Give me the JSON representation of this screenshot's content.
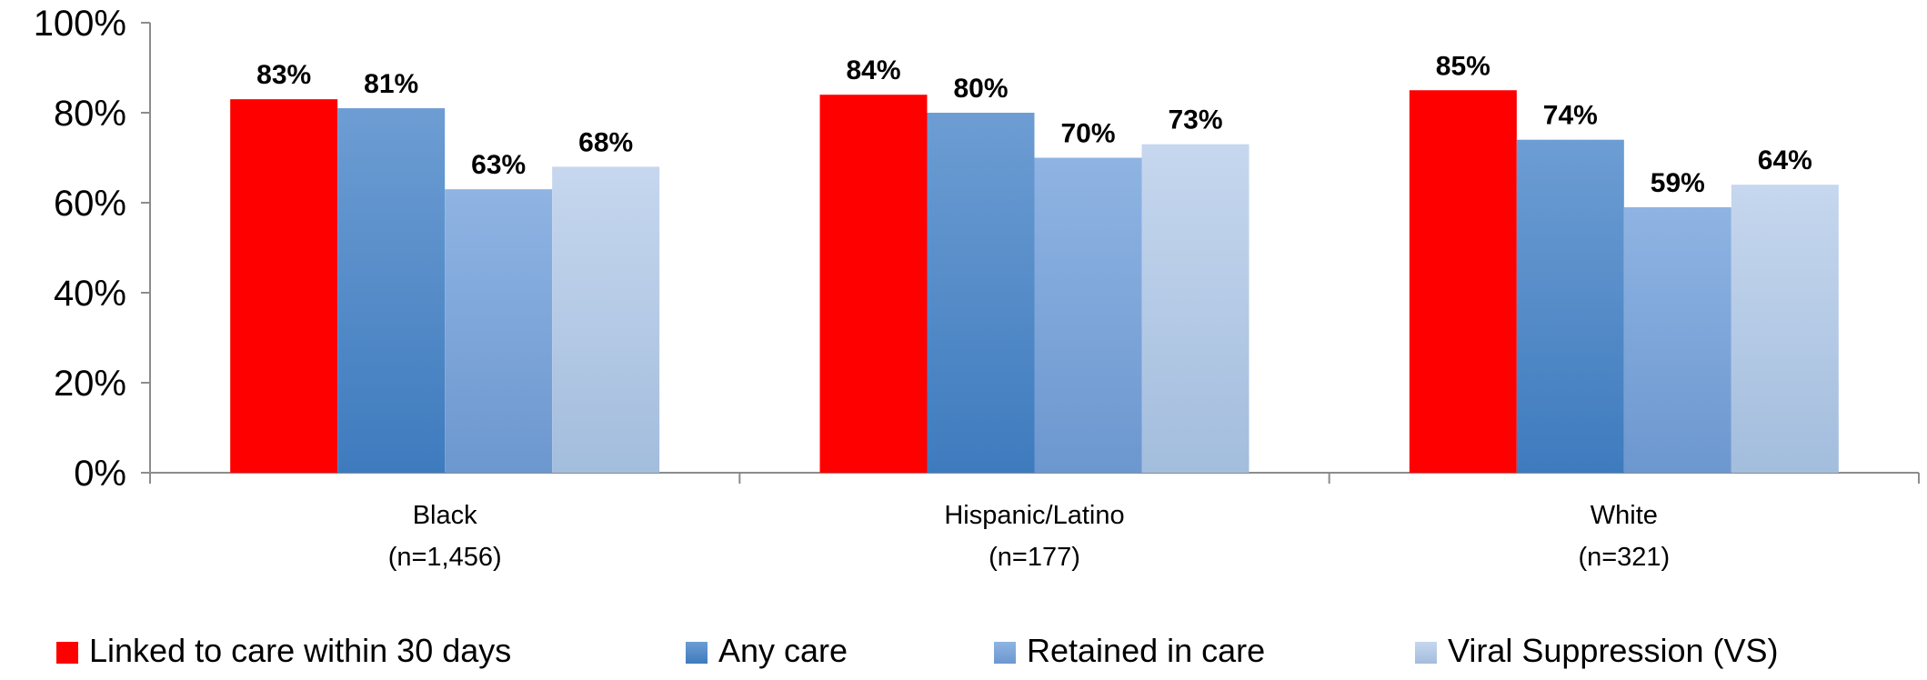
{
  "chart_data": {
    "type": "bar",
    "categories": [
      "Black",
      "Hispanic/Latino",
      "White"
    ],
    "category_sublabels": [
      "(n=1,456)",
      "(n=177)",
      "(n=321)"
    ],
    "series": [
      {
        "name": "Linked to care within 30 days",
        "values": [
          83,
          84,
          85
        ],
        "labels": [
          "83%",
          "84%",
          "85%"
        ],
        "color": "#FF0000"
      },
      {
        "name": "Any care",
        "values": [
          81,
          80,
          74
        ],
        "labels": [
          "81%",
          "80%",
          "74%"
        ],
        "color": "#4F81BD"
      },
      {
        "name": "Retained in care",
        "values": [
          63,
          70,
          59
        ],
        "labels": [
          "63%",
          "70%",
          "59%"
        ],
        "color": "#7BA7DC"
      },
      {
        "name": "Viral Suppression (VS)",
        "values": [
          68,
          73,
          64
        ],
        "labels": [
          "68%",
          "73%",
          "64%"
        ],
        "color": "#B9CDE8"
      }
    ],
    "yticks": [
      "0%",
      "20%",
      "40%",
      "60%",
      "80%",
      "100%"
    ],
    "ylim": [
      0,
      100
    ],
    "grid": false,
    "legend_position": "bottom"
  }
}
